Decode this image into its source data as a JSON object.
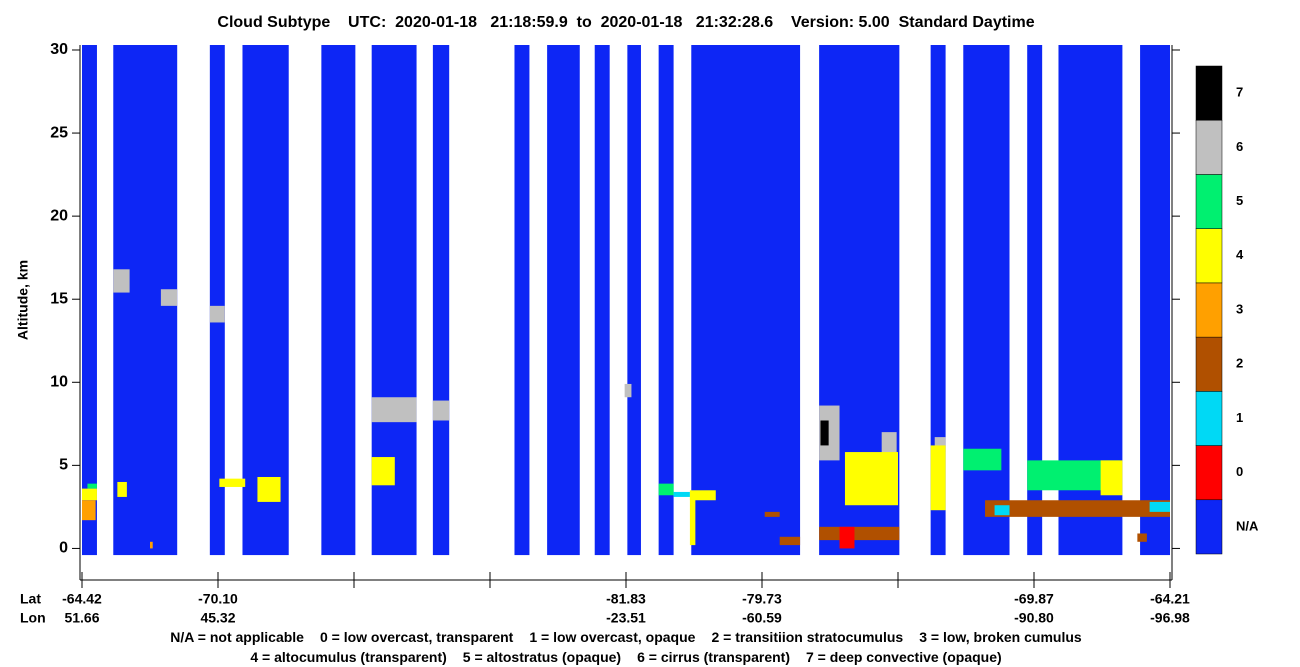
{
  "chart_data": {
    "type": "curtain",
    "title": "Cloud Subtype    UTC:  2020-01-18   21:18:59.9  to  2020-01-18   21:32:28.6    Version: 5.00  Standard Daytime",
    "ylabel": "Altitude, km",
    "ylim": [
      -1.9,
      30.3
    ],
    "yticks": [
      0,
      5,
      10,
      15,
      20,
      25,
      30
    ],
    "xlim": [
      0,
      8
    ],
    "xrow_labels": [
      "Lat",
      "Lon"
    ],
    "xticks": [
      {
        "value": 0,
        "lat": "-64.42",
        "lon": "51.66"
      },
      {
        "value": 1,
        "lat": "-70.10",
        "lon": "45.32"
      },
      {
        "value": 2,
        "lat": null,
        "lon": null
      },
      {
        "value": 3,
        "lat": null,
        "lon": null
      },
      {
        "value": 4,
        "lat": "-81.83",
        "lon": "-23.51"
      },
      {
        "value": 5,
        "lat": "-79.73",
        "lon": "-60.59"
      },
      {
        "value": 6,
        "lat": null,
        "lon": null
      },
      {
        "value": 7,
        "lat": "-69.87",
        "lon": "-90.80"
      },
      {
        "value": 8,
        "lat": "-64.21",
        "lon": "-96.98"
      }
    ],
    "levels": [
      {
        "label": "N/A",
        "color": "#0d26f5"
      },
      {
        "label": "0",
        "color": "#ff0000"
      },
      {
        "label": "1",
        "color": "#00d9f5"
      },
      {
        "label": "2",
        "color": "#b05000"
      },
      {
        "label": "3",
        "color": "#ffa000"
      },
      {
        "label": "4",
        "color": "#ffff00"
      },
      {
        "label": "5",
        "color": "#00f070"
      },
      {
        "label": "6",
        "color": "#c0c0c0"
      },
      {
        "label": "7",
        "color": "#000000"
      }
    ],
    "na_bottom": -0.4,
    "na_columns": [
      [
        0,
        0.11
      ],
      [
        0.23,
        0.7
      ],
      [
        0.94,
        1.05
      ],
      [
        1.18,
        1.52
      ],
      [
        1.76,
        2.01
      ],
      [
        2.13,
        2.46
      ],
      [
        2.58,
        2.7
      ],
      [
        3.18,
        3.29
      ],
      [
        3.42,
        3.66
      ],
      [
        3.77,
        3.88
      ],
      [
        4.01,
        4.11
      ],
      [
        4.24,
        4.35
      ],
      [
        4.48,
        5.28
      ],
      [
        5.42,
        6.01
      ],
      [
        6.24,
        6.35
      ],
      [
        6.48,
        6.82
      ],
      [
        6.95,
        7.06
      ],
      [
        7.18,
        7.65
      ],
      [
        7.78,
        8.0
      ]
    ],
    "features": [
      {
        "subtype": "6",
        "x": [
          0.23,
          0.35
        ],
        "alt": [
          15.4,
          16.8
        ]
      },
      {
        "subtype": "6",
        "x": [
          0.58,
          0.7
        ],
        "alt": [
          14.6,
          15.6
        ]
      },
      {
        "subtype": "6",
        "x": [
          0.94,
          1.05
        ],
        "alt": [
          13.6,
          14.6
        ]
      },
      {
        "subtype": "6",
        "x": [
          2.13,
          2.46
        ],
        "alt": [
          7.6,
          9.1
        ]
      },
      {
        "subtype": "6",
        "x": [
          2.58,
          2.7
        ],
        "alt": [
          7.7,
          8.9
        ]
      },
      {
        "subtype": "6",
        "x": [
          3.99,
          4.04
        ],
        "alt": [
          9.1,
          9.9
        ]
      },
      {
        "subtype": "6",
        "x": [
          5.42,
          5.57
        ],
        "alt": [
          5.3,
          8.6
        ]
      },
      {
        "subtype": "7",
        "x": [
          5.43,
          5.49
        ],
        "alt": [
          6.2,
          7.7
        ]
      },
      {
        "subtype": "6",
        "x": [
          5.88,
          5.99
        ],
        "alt": [
          5.2,
          7.0
        ]
      },
      {
        "subtype": "6",
        "x": [
          6.27,
          6.35
        ],
        "alt": [
          5.8,
          6.7
        ]
      },
      {
        "subtype": "5",
        "x": [
          0.04,
          0.11
        ],
        "alt": [
          3.6,
          3.9
        ]
      },
      {
        "subtype": "4",
        "x": [
          0,
          0.11
        ],
        "alt": [
          2.9,
          3.6
        ]
      },
      {
        "subtype": "3",
        "x": [
          0,
          0.1
        ],
        "alt": [
          1.7,
          2.9
        ]
      },
      {
        "subtype": "4",
        "x": [
          0.26,
          0.33
        ],
        "alt": [
          3.1,
          4.0
        ]
      },
      {
        "subtype": "3",
        "x": [
          0.5,
          0.52
        ],
        "alt": [
          0,
          0.4
        ]
      },
      {
        "subtype": "4",
        "x": [
          1.01,
          1.2
        ],
        "alt": [
          3.7,
          4.2
        ]
      },
      {
        "subtype": "4",
        "x": [
          1.29,
          1.46
        ],
        "alt": [
          2.8,
          4.3
        ]
      },
      {
        "subtype": "4",
        "x": [
          2.13,
          2.3
        ],
        "alt": [
          3.8,
          5.5
        ]
      },
      {
        "subtype": "5",
        "x": [
          4.24,
          4.35
        ],
        "alt": [
          3.2,
          3.9
        ]
      },
      {
        "subtype": "1",
        "x": [
          4.35,
          4.47
        ],
        "alt": [
          3.1,
          3.4
        ]
      },
      {
        "subtype": "4",
        "x": [
          4.47,
          4.66
        ],
        "alt": [
          2.9,
          3.5
        ]
      },
      {
        "subtype": "4",
        "x": [
          4.47,
          4.51
        ],
        "alt": [
          0.2,
          3.1
        ]
      },
      {
        "subtype": "2",
        "x": [
          5.02,
          5.13
        ],
        "alt": [
          1.9,
          2.2
        ]
      },
      {
        "subtype": "2",
        "x": [
          5.13,
          5.28
        ],
        "alt": [
          0.2,
          0.7
        ]
      },
      {
        "subtype": "2",
        "x": [
          5.42,
          6.01
        ],
        "alt": [
          0.5,
          1.3
        ]
      },
      {
        "subtype": "0",
        "x": [
          5.57,
          5.68
        ],
        "alt": [
          0,
          1.3
        ]
      },
      {
        "subtype": "4",
        "x": [
          5.61,
          6.0
        ],
        "alt": [
          2.6,
          5.8
        ]
      },
      {
        "subtype": "4",
        "x": [
          6.24,
          6.35
        ],
        "alt": [
          2.3,
          6.2
        ]
      },
      {
        "subtype": "5",
        "x": [
          6.48,
          6.76
        ],
        "alt": [
          4.7,
          6.0
        ]
      },
      {
        "subtype": "5",
        "x": [
          6.95,
          7.63
        ],
        "alt": [
          3.5,
          5.3
        ]
      },
      {
        "subtype": "4",
        "x": [
          7.49,
          7.65
        ],
        "alt": [
          3.2,
          5.3
        ]
      },
      {
        "subtype": "2",
        "x": [
          6.64,
          8.0
        ],
        "alt": [
          1.9,
          2.9
        ]
      },
      {
        "subtype": "1",
        "x": [
          6.71,
          6.82
        ],
        "alt": [
          2.0,
          2.6
        ]
      },
      {
        "subtype": "1",
        "x": [
          7.85,
          8.0
        ],
        "alt": [
          2.2,
          2.8
        ]
      },
      {
        "subtype": "2",
        "x": [
          7.76,
          7.83
        ],
        "alt": [
          0.4,
          0.9
        ]
      }
    ],
    "legend_lines": [
      [
        "N/A = not applicable",
        "0 = low overcast, transparent",
        "1 = low overcast, opaque",
        "2 = transitiion stratocumulus",
        "3 = low, broken cumulus"
      ],
      [
        "4 = altocumulus (transparent)",
        "5 = altostratus (opaque)",
        "6 = cirrus (transparent)",
        "7 = deep convective (opaque)"
      ]
    ]
  }
}
